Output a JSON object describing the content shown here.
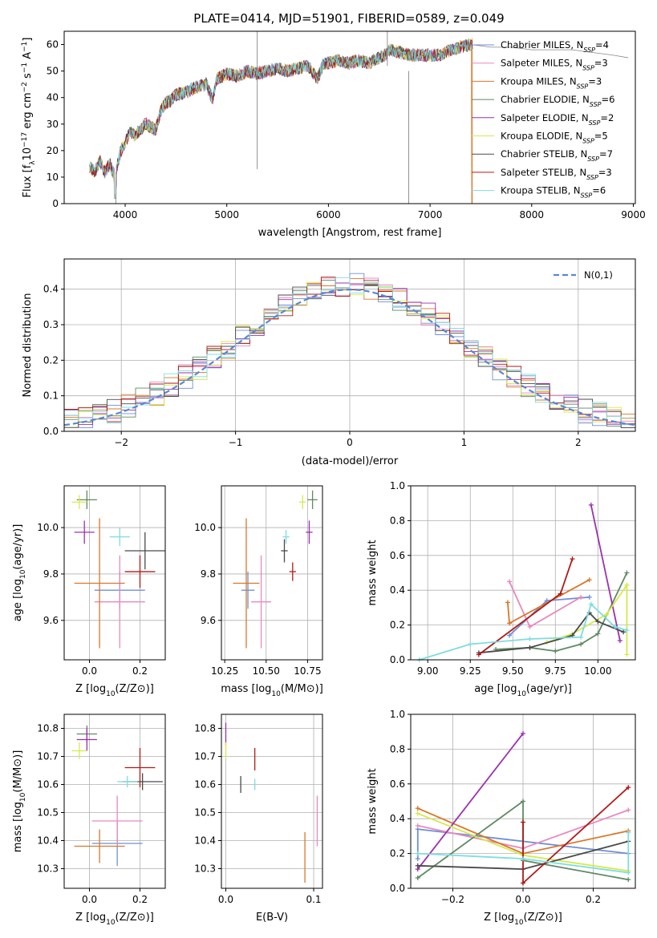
{
  "chart_data": [
    {
      "id": "spectrum",
      "type": "line",
      "title": "PLATE=0414, MJD=51901, FIBERID=0589, z=0.049",
      "xlabel": "wavelength [Angstrom, rest frame]",
      "ylabel": "Flux [f_λ10^-17 erg cm^-2 s^-1 A^-1]",
      "xlim": [
        3400,
        9020
      ],
      "ylim": [
        0,
        65
      ],
      "xticks": [
        4000,
        5000,
        6000,
        7000,
        8000,
        9000
      ],
      "yticks": [
        0,
        10,
        20,
        30,
        40,
        50,
        60
      ],
      "grid": false,
      "legend_position": "right",
      "data_line": {
        "x": [
          3650,
          3700,
          3750,
          3800,
          3850,
          3900,
          3950,
          4000,
          4050,
          4100,
          4150,
          4200,
          4250,
          4300,
          4350,
          4400,
          4450,
          4500,
          4600,
          4700,
          4800,
          4861,
          4900,
          5000,
          5100,
          5200,
          5300,
          5400,
          5500,
          5600,
          5700,
          5800,
          5893,
          5950,
          6000,
          6100,
          6200,
          6300,
          6400,
          6500,
          6563,
          6600,
          6700,
          6800,
          6900,
          7000,
          7100,
          7200,
          7300,
          7400,
          7420
        ],
        "y": [
          14,
          12,
          16,
          12,
          15,
          10,
          19,
          23,
          27,
          26,
          28,
          30,
          29,
          28,
          35,
          38,
          39,
          41,
          42,
          44,
          45,
          39,
          47,
          49,
          48,
          50,
          49,
          50,
          51,
          50,
          51,
          52,
          47,
          53,
          53,
          54,
          53,
          54,
          53,
          55,
          56,
          58,
          57,
          56,
          56,
          56,
          56,
          58,
          59,
          60,
          60
        ]
      },
      "model_line": {
        "x": [
          7400,
          7600,
          7800,
          8000,
          8200,
          8400,
          8600,
          8800,
          8950
        ],
        "y": [
          60,
          59,
          59,
          58,
          58,
          58,
          57,
          56,
          55
        ]
      },
      "series": [
        {
          "name": "Chabrier MILES",
          "nssp": "4",
          "color": "#6f8fd6",
          "cut": null
        },
        {
          "name": "Salpeter MILES",
          "nssp": "3",
          "color": "#e889bd",
          "cut": null
        },
        {
          "name": "Kroupa MILES",
          "nssp": "3",
          "color": "#d9772b",
          "cut": 7410
        },
        {
          "name": "Chabrier ELODIE",
          "nssp": "6",
          "color": "#5f8a62",
          "cut": null
        },
        {
          "name": "Salpeter ELODIE",
          "nssp": "2",
          "color": "#9b30b0",
          "cut": null
        },
        {
          "name": "Kroupa ELODIE",
          "nssp": "5",
          "color": "#d4ea4a",
          "cut": null
        },
        {
          "name": "Chabrier STELIB",
          "nssp": "7",
          "color": "#4a4a4a",
          "cut": null
        },
        {
          "name": "Salpeter STELIB",
          "nssp": "3",
          "color": "#b01a1a",
          "cut": null
        },
        {
          "name": "Kroupa STELIB",
          "nssp": "6",
          "color": "#7fdcdf",
          "cut": null
        }
      ],
      "legend_prefix": "N",
      "legend_sub": "SSP"
    },
    {
      "id": "residuals",
      "type": "histogram",
      "xlabel": "(data-model)/error",
      "ylabel": "Normed distribution",
      "xlim": [
        -2.5,
        2.5
      ],
      "ylim": [
        0,
        0.485
      ],
      "xticks": [
        -2,
        -1,
        0,
        1,
        2
      ],
      "yticks": [
        0.0,
        0.1,
        0.2,
        0.3,
        0.4
      ],
      "grid": true,
      "legend_position": "top-right",
      "legend_label": "N(0,1)",
      "gaussian_color": "#5b87d0",
      "bins": 40
    },
    {
      "id": "age-vs-Z",
      "type": "scatter",
      "xlabel": "Z [log10(Z/Z⊙)]",
      "ylabel": "age  [log10(age/yr)]",
      "xlim": [
        -0.1,
        0.3
      ],
      "ylim": [
        9.43,
        10.18
      ],
      "xticks": [
        0.0,
        0.2
      ],
      "yticks": [
        9.6,
        9.8,
        10.0
      ],
      "grid": true,
      "points": [
        {
          "x": 0.12,
          "y": 9.73,
          "xerr": 0.1,
          "yerr": 0.08,
          "color": "#6f8fd6"
        },
        {
          "x": 0.12,
          "y": 9.68,
          "xerr": 0.1,
          "yerr": 0.2,
          "color": "#e889bd"
        },
        {
          "x": 0.04,
          "y": 9.76,
          "xerr": 0.1,
          "yerr": 0.28,
          "color": "#d9772b"
        },
        {
          "x": -0.01,
          "y": 10.12,
          "xerr": 0.04,
          "yerr": 0.04,
          "color": "#5f8a62"
        },
        {
          "x": -0.02,
          "y": 9.98,
          "xerr": 0.04,
          "yerr": 0.05,
          "color": "#9b30b0"
        },
        {
          "x": -0.04,
          "y": 10.11,
          "xerr": 0.03,
          "yerr": 0.03,
          "color": "#d4ea4a"
        },
        {
          "x": 0.22,
          "y": 9.9,
          "xerr": 0.08,
          "yerr": 0.08,
          "color": "#4a4a4a"
        },
        {
          "x": 0.2,
          "y": 9.81,
          "xerr": 0.06,
          "yerr": 0.07,
          "color": "#b01a1a"
        },
        {
          "x": 0.12,
          "y": 9.96,
          "xerr": 0.04,
          "yerr": 0.04,
          "color": "#7fdcdf"
        }
      ]
    },
    {
      "id": "age-vs-mass",
      "type": "scatter",
      "xlabel": "mass [log10(M/M⊙)]",
      "ylabel": "",
      "xlim": [
        10.23,
        10.84
      ],
      "ylim": [
        9.43,
        10.18
      ],
      "xticks": [
        10.25,
        10.5,
        10.75
      ],
      "yticks": [
        9.6,
        9.8,
        10.0
      ],
      "grid": true,
      "points": [
        {
          "x": 10.39,
          "y": 9.73,
          "xerr": 0.04,
          "yerr": 0.08,
          "color": "#6f8fd6"
        },
        {
          "x": 10.47,
          "y": 9.68,
          "xerr": 0.06,
          "yerr": 0.2,
          "color": "#e889bd"
        },
        {
          "x": 10.38,
          "y": 9.76,
          "xerr": 0.08,
          "yerr": 0.28,
          "color": "#d9772b"
        },
        {
          "x": 10.78,
          "y": 10.12,
          "xerr": 0.03,
          "yerr": 0.04,
          "color": "#5f8a62"
        },
        {
          "x": 10.76,
          "y": 9.98,
          "xerr": 0.02,
          "yerr": 0.05,
          "color": "#9b30b0"
        },
        {
          "x": 10.72,
          "y": 10.11,
          "xerr": 0.02,
          "yerr": 0.03,
          "color": "#d4ea4a"
        },
        {
          "x": 10.61,
          "y": 9.9,
          "xerr": 0.02,
          "yerr": 0.05,
          "color": "#4a4a4a"
        },
        {
          "x": 10.66,
          "y": 9.81,
          "xerr": 0.02,
          "yerr": 0.04,
          "color": "#b01a1a"
        },
        {
          "x": 10.62,
          "y": 9.96,
          "xerr": 0.02,
          "yerr": 0.03,
          "color": "#7fdcdf"
        }
      ]
    },
    {
      "id": "weight-vs-age",
      "type": "line",
      "xlabel": "age  [log10(age/yr)]",
      "ylabel": "mass weight",
      "xlim": [
        8.9,
        10.22
      ],
      "ylim": [
        0,
        1.0
      ],
      "xticks": [
        9.0,
        9.25,
        9.5,
        9.75,
        10.0
      ],
      "yticks": [
        0.0,
        0.2,
        0.4,
        0.6,
        0.8,
        1.0
      ],
      "grid": true,
      "series": [
        {
          "color": "#6f8fd6",
          "x": [
            9.48,
            9.7,
            9.95
          ],
          "y": [
            0.14,
            0.34,
            0.36
          ]
        },
        {
          "color": "#e889bd",
          "x": [
            9.48,
            9.6,
            9.9
          ],
          "y": [
            0.45,
            0.19,
            0.36
          ]
        },
        {
          "color": "#d9772b",
          "x": [
            9.47,
            9.48,
            9.95
          ],
          "y": [
            0.33,
            0.21,
            0.46
          ]
        },
        {
          "color": "#5f8a62",
          "x": [
            9.4,
            9.6,
            9.75,
            9.9,
            10.0,
            10.17
          ],
          "y": [
            0.06,
            0.07,
            0.05,
            0.09,
            0.15,
            0.5
          ]
        },
        {
          "color": "#9b30b0",
          "x": [
            9.96,
            10.13
          ],
          "y": [
            0.89,
            0.11
          ]
        },
        {
          "color": "#d4ea4a",
          "x": [
            9.7,
            9.85,
            10.05,
            10.17,
            10.17
          ],
          "y": [
            0.1,
            0.15,
            0.26,
            0.43,
            0.03
          ]
        },
        {
          "color": "#4a4a4a",
          "x": [
            9.3,
            9.6,
            9.85,
            9.95,
            10.0,
            10.15
          ],
          "y": [
            0.04,
            0.07,
            0.14,
            0.27,
            0.22,
            0.16
          ]
        },
        {
          "color": "#b01a1a",
          "x": [
            9.3,
            9.78,
            9.85
          ],
          "y": [
            0.03,
            0.38,
            0.58
          ]
        },
        {
          "color": "#7fdcdf",
          "x": [
            8.95,
            9.25,
            9.6,
            9.9,
            9.96,
            10.1,
            10.17
          ],
          "y": [
            0.0,
            0.09,
            0.12,
            0.13,
            0.32,
            0.19,
            0.17
          ]
        }
      ]
    },
    {
      "id": "mass-vs-Z",
      "type": "scatter",
      "xlabel": "Z [log10(Z/Z⊙)]",
      "ylabel": "mass [log10(M/M⊙)]",
      "xlim": [
        -0.1,
        0.3
      ],
      "ylim": [
        10.23,
        10.85
      ],
      "xticks": [
        0.0,
        0.2
      ],
      "yticks": [
        10.3,
        10.4,
        10.5,
        10.6,
        10.7,
        10.8
      ],
      "grid": true,
      "points": [
        {
          "x": 0.11,
          "y": 10.39,
          "xerr": 0.1,
          "yerr": 0.08,
          "color": "#6f8fd6"
        },
        {
          "x": 0.11,
          "y": 10.47,
          "xerr": 0.1,
          "yerr": 0.09,
          "color": "#e889bd"
        },
        {
          "x": 0.04,
          "y": 10.38,
          "xerr": 0.1,
          "yerr": 0.06,
          "color": "#d9772b"
        },
        {
          "x": -0.01,
          "y": 10.78,
          "xerr": 0.04,
          "yerr": 0.03,
          "color": "#5f8a62"
        },
        {
          "x": -0.01,
          "y": 10.76,
          "xerr": 0.04,
          "yerr": 0.04,
          "color": "#9b30b0"
        },
        {
          "x": -0.04,
          "y": 10.72,
          "xerr": 0.03,
          "yerr": 0.03,
          "color": "#d4ea4a"
        },
        {
          "x": 0.21,
          "y": 10.61,
          "xerr": 0.08,
          "yerr": 0.03,
          "color": "#4a4a4a"
        },
        {
          "x": 0.2,
          "y": 10.66,
          "xerr": 0.06,
          "yerr": 0.07,
          "color": "#b01a1a"
        },
        {
          "x": 0.15,
          "y": 10.61,
          "xerr": 0.04,
          "yerr": 0.02,
          "color": "#7fdcdf"
        }
      ]
    },
    {
      "id": "mass-vs-ebv",
      "type": "scatter",
      "xlabel": "E(B-V)",
      "ylabel": "",
      "xlim": [
        -0.005,
        0.11
      ],
      "ylim": [
        10.23,
        10.85
      ],
      "xticks": [
        0.0,
        0.1
      ],
      "yticks": [
        10.3,
        10.4,
        10.5,
        10.6,
        10.7,
        10.8
      ],
      "grid": true,
      "points": [
        {
          "x": 0.09,
          "y": 10.34,
          "xerr": 0,
          "yerr": 0.09,
          "color": "#d9772b"
        },
        {
          "x": 0.104,
          "y": 10.47,
          "xerr": 0,
          "yerr": 0.09,
          "color": "#e889bd"
        },
        {
          "x": 0.033,
          "y": 10.69,
          "xerr": 0,
          "yerr": 0.04,
          "color": "#b01a1a"
        },
        {
          "x": 0.033,
          "y": 10.6,
          "xerr": 0,
          "yerr": 0.02,
          "color": "#7fdcdf"
        },
        {
          "x": 0.017,
          "y": 10.6,
          "xerr": 0,
          "yerr": 0.03,
          "color": "#4a4a4a"
        },
        {
          "x": 0.0,
          "y": 10.78,
          "xerr": 0,
          "yerr": 0.04,
          "color": "#9b30b0"
        },
        {
          "x": 0.0,
          "y": 10.72,
          "xerr": 0,
          "yerr": 0.03,
          "color": "#d4ea4a"
        }
      ]
    },
    {
      "id": "weight-vs-Z",
      "type": "line",
      "xlabel": "Z [log10(Z/Z⊙)]",
      "ylabel": "mass weight",
      "xlim": [
        -0.32,
        0.32
      ],
      "ylim": [
        0,
        1.0
      ],
      "xticks": [
        -0.2,
        0.0,
        0.2
      ],
      "yticks": [
        0.0,
        0.2,
        0.4,
        0.6,
        0.8,
        1.0
      ],
      "grid": true,
      "series": [
        {
          "color": "#6f8fd6",
          "x": [
            -0.3,
            -0.3,
            0.3
          ],
          "y": [
            0.17,
            0.34,
            0.2
          ]
        },
        {
          "color": "#e889bd",
          "x": [
            -0.3,
            0.0,
            0.3
          ],
          "y": [
            0.36,
            0.23,
            0.45
          ]
        },
        {
          "color": "#d9772b",
          "x": [
            -0.3,
            0.0,
            0.3
          ],
          "y": [
            0.46,
            0.2,
            0.33
          ]
        },
        {
          "color": "#5f8a62",
          "x": [
            -0.3,
            0.0,
            0.0,
            0.3
          ],
          "y": [
            0.06,
            0.5,
            0.16,
            0.05
          ]
        },
        {
          "color": "#9b30b0",
          "x": [
            -0.3,
            0.0
          ],
          "y": [
            0.11,
            0.89
          ]
        },
        {
          "color": "#d4ea4a",
          "x": [
            -0.3,
            0.0,
            0.3
          ],
          "y": [
            0.43,
            0.19,
            0.1
          ]
        },
        {
          "color": "#4a4a4a",
          "x": [
            -0.3,
            0.0,
            0.3
          ],
          "y": [
            0.13,
            0.11,
            0.27
          ]
        },
        {
          "color": "#b01a1a",
          "x": [
            0.0,
            0.0,
            0.3
          ],
          "y": [
            0.38,
            0.03,
            0.58
          ]
        },
        {
          "color": "#7fdcdf",
          "x": [
            -0.3,
            0.0,
            0.3,
            0.3
          ],
          "y": [
            0.2,
            0.17,
            0.09,
            0.32
          ]
        }
      ]
    }
  ]
}
